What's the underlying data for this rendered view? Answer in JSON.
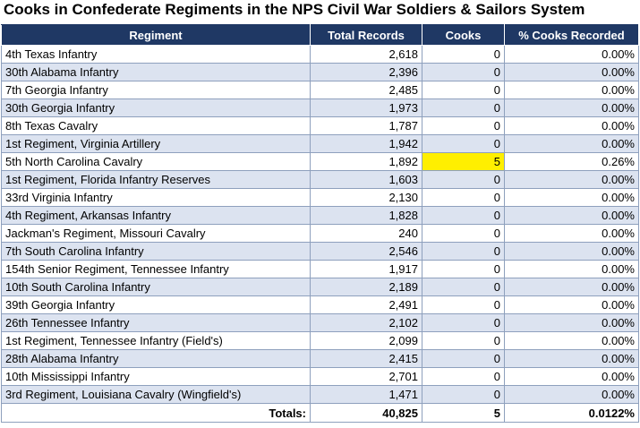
{
  "title": "Cooks in Confederate Regiments in the NPS Civil War Soldiers & Sailors System",
  "columns": [
    "Regiment",
    "Total Records",
    "Cooks",
    "% Cooks Recorded"
  ],
  "rows": [
    {
      "regiment": "4th Texas Infantry",
      "total": "2,618",
      "cooks": "0",
      "pct": "0.00%"
    },
    {
      "regiment": "30th Alabama Infantry",
      "total": "2,396",
      "cooks": "0",
      "pct": "0.00%"
    },
    {
      "regiment": "7th Georgia Infantry",
      "total": "2,485",
      "cooks": "0",
      "pct": "0.00%"
    },
    {
      "regiment": "30th Georgia Infantry",
      "total": "1,973",
      "cooks": "0",
      "pct": "0.00%"
    },
    {
      "regiment": "8th Texas Cavalry",
      "total": "1,787",
      "cooks": "0",
      "pct": "0.00%"
    },
    {
      "regiment": "1st Regiment, Virginia Artillery",
      "total": "1,942",
      "cooks": "0",
      "pct": "0.00%"
    },
    {
      "regiment": "5th North Carolina Cavalry",
      "total": "1,892",
      "cooks": "5",
      "pct": "0.26%",
      "highlight": true
    },
    {
      "regiment": "1st Regiment, Florida Infantry Reserves",
      "total": "1,603",
      "cooks": "0",
      "pct": "0.00%"
    },
    {
      "regiment": "33rd Virginia Infantry",
      "total": "2,130",
      "cooks": "0",
      "pct": "0.00%"
    },
    {
      "regiment": "4th Regiment, Arkansas Infantry",
      "total": "1,828",
      "cooks": "0",
      "pct": "0.00%"
    },
    {
      "regiment": "Jackman's Regiment, Missouri Cavalry",
      "total": "240",
      "cooks": "0",
      "pct": "0.00%"
    },
    {
      "regiment": "7th South Carolina Infantry",
      "total": "2,546",
      "cooks": "0",
      "pct": "0.00%"
    },
    {
      "regiment": "154th Senior Regiment, Tennessee Infantry",
      "total": "1,917",
      "cooks": "0",
      "pct": "0.00%"
    },
    {
      "regiment": "10th South Carolina Infantry",
      "total": "2,189",
      "cooks": "0",
      "pct": "0.00%"
    },
    {
      "regiment": "39th Georgia Infantry",
      "total": "2,491",
      "cooks": "0",
      "pct": "0.00%"
    },
    {
      "regiment": "26th Tennessee Infantry",
      "total": "2,102",
      "cooks": "0",
      "pct": "0.00%"
    },
    {
      "regiment": "1st Regiment, Tennessee Infantry (Field's)",
      "total": "2,099",
      "cooks": "0",
      "pct": "0.00%"
    },
    {
      "regiment": "28th Alabama Infantry",
      "total": "2,415",
      "cooks": "0",
      "pct": "0.00%"
    },
    {
      "regiment": "10th Mississippi Infantry",
      "total": "2,701",
      "cooks": "0",
      "pct": "0.00%"
    },
    {
      "regiment": "3rd Regiment, Louisiana Cavalry (Wingfield's)",
      "total": "1,471",
      "cooks": "0",
      "pct": "0.00%"
    }
  ],
  "totals": {
    "label": "Totals:",
    "total": "40,825",
    "cooks": "5",
    "pct": "0.0122%"
  },
  "colors": {
    "header_bg": "#1f3864",
    "band": "#dce3f0",
    "highlight": "#ffef00"
  }
}
